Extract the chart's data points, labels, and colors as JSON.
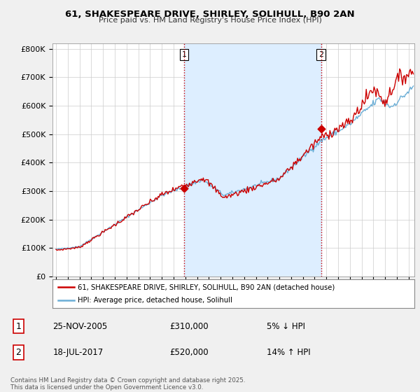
{
  "title_line1": "61, SHAKESPEARE DRIVE, SHIRLEY, SOLIHULL, B90 2AN",
  "title_line2": "Price paid vs. HM Land Registry's House Price Index (HPI)",
  "ylabel_ticks": [
    "£0",
    "£100K",
    "£200K",
    "£300K",
    "£400K",
    "£500K",
    "£600K",
    "£700K",
    "£800K"
  ],
  "ytick_values": [
    0,
    100000,
    200000,
    300000,
    400000,
    500000,
    600000,
    700000,
    800000
  ],
  "ylim": [
    0,
    820000
  ],
  "xlim_start": 1994.7,
  "xlim_end": 2025.5,
  "hpi_color": "#6baed6",
  "price_color": "#cc0000",
  "shade_color": "#ddeeff",
  "transaction1_price": 310000,
  "transaction1_label": "5% ↓ HPI",
  "transaction1_x": 2005.9,
  "transaction1_date": "25-NOV-2005",
  "transaction2_price": 520000,
  "transaction2_label": "14% ↑ HPI",
  "transaction2_x": 2017.55,
  "transaction2_date": "18-JUL-2017",
  "vline_color": "#cc0000",
  "legend_label_price": "61, SHAKESPEARE DRIVE, SHIRLEY, SOLIHULL, B90 2AN (detached house)",
  "legend_label_hpi": "HPI: Average price, detached house, Solihull",
  "footer_text": "Contains HM Land Registry data © Crown copyright and database right 2025.\nThis data is licensed under the Open Government Licence v3.0.",
  "bg_color": "#f0f0f0",
  "plot_bg_color": "#ffffff",
  "grid_color": "#cccccc",
  "annotation1_num": "1",
  "annotation2_num": "2"
}
